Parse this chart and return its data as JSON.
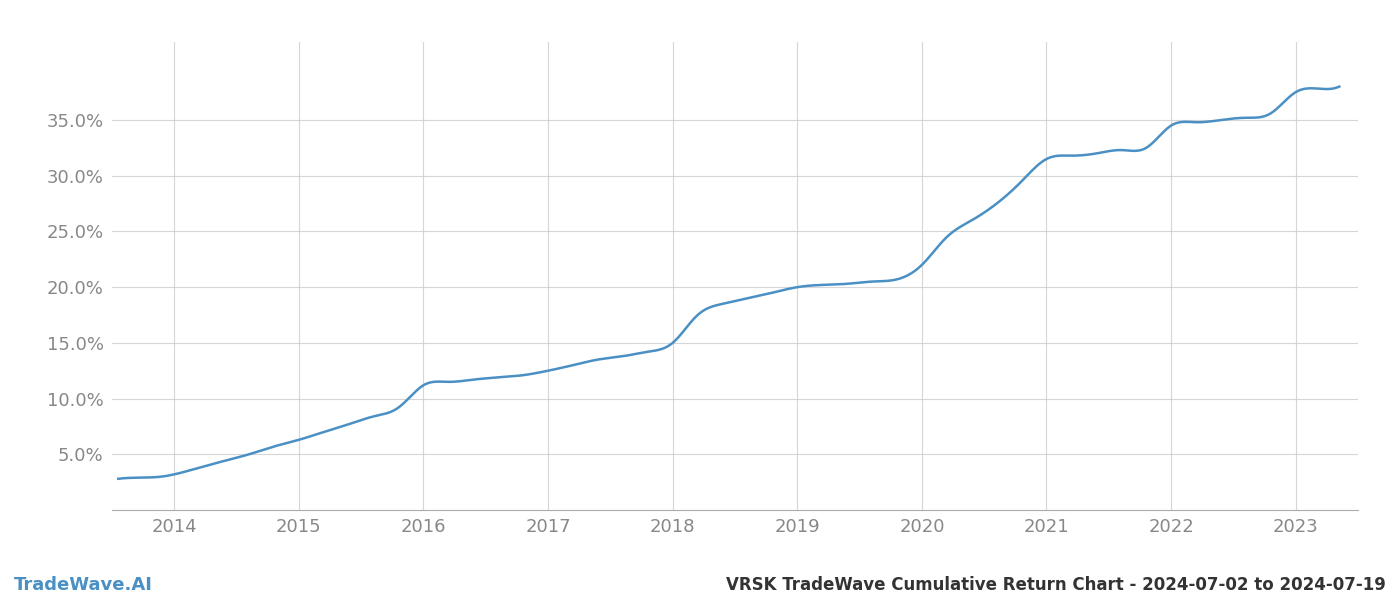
{
  "title": "VRSK TradeWave Cumulative Return Chart - 2024-07-02 to 2024-07-19",
  "watermark": "TradeWave.AI",
  "line_color": "#4a90c4",
  "background_color": "#ffffff",
  "grid_color": "#cccccc",
  "x_years": [
    2013.55,
    2013.7,
    2013.9,
    2014.0,
    2014.2,
    2014.4,
    2014.6,
    2014.8,
    2015.0,
    2015.2,
    2015.4,
    2015.6,
    2015.8,
    2016.0,
    2016.2,
    2016.4,
    2016.6,
    2016.8,
    2017.0,
    2017.2,
    2017.4,
    2017.6,
    2017.8,
    2018.0,
    2018.2,
    2018.4,
    2018.6,
    2018.8,
    2019.0,
    2019.2,
    2019.4,
    2019.6,
    2019.8,
    2020.0,
    2020.2,
    2020.4,
    2020.6,
    2020.8,
    2021.0,
    2021.2,
    2021.4,
    2021.6,
    2021.8,
    2022.0,
    2022.2,
    2022.4,
    2022.6,
    2022.8,
    2023.0,
    2023.2,
    2023.35
  ],
  "y_values": [
    2.8,
    2.9,
    3.0,
    3.2,
    3.8,
    4.4,
    5.0,
    5.7,
    6.3,
    7.0,
    7.7,
    8.4,
    9.2,
    11.2,
    11.5,
    11.7,
    11.9,
    12.1,
    12.5,
    13.0,
    13.5,
    13.8,
    14.2,
    15.0,
    17.5,
    18.5,
    19.0,
    19.5,
    20.0,
    20.2,
    20.3,
    20.5,
    20.7,
    22.0,
    24.5,
    26.0,
    27.5,
    29.5,
    31.5,
    31.8,
    32.0,
    32.3,
    32.5,
    34.5,
    34.8,
    35.0,
    35.2,
    35.6,
    37.5,
    37.8,
    38.0
  ],
  "xticks": [
    2014,
    2015,
    2016,
    2017,
    2018,
    2019,
    2020,
    2021,
    2022,
    2023
  ],
  "yticks": [
    5.0,
    10.0,
    15.0,
    20.0,
    25.0,
    30.0,
    35.0
  ],
  "ylim": [
    0,
    42
  ],
  "xlim": [
    2013.5,
    2023.5
  ],
  "tick_label_color": "#888888",
  "tick_fontsize": 13,
  "watermark_fontsize": 13,
  "title_fontsize": 12,
  "line_width": 1.8
}
